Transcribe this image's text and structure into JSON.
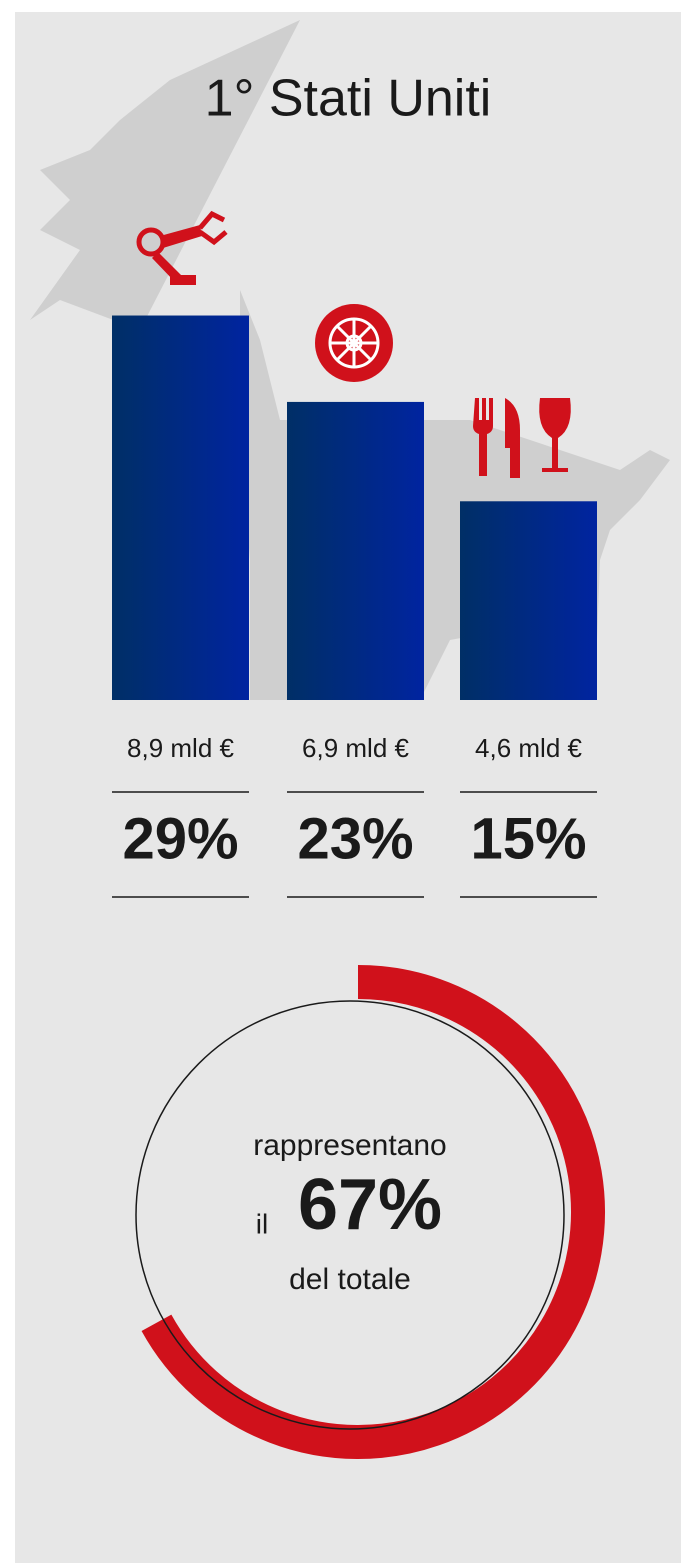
{
  "chart_data": [
    {
      "type": "bar",
      "title": "1° Stati Uniti",
      "values": [
        8.9,
        6.9,
        4.6
      ],
      "value_labels": [
        "8,9 mld €",
        "6,9 mld €",
        "4,6 mld €"
      ],
      "shares": [
        29,
        23,
        15
      ],
      "share_labels": [
        "29%",
        "23%",
        "15%"
      ],
      "color": "#002c8a"
    },
    {
      "type": "donut",
      "value": 67,
      "value_label": "67%",
      "text_top": "rappresentano",
      "text_prefix": "il",
      "text_bottom": "del totale",
      "color": "#d0111b"
    }
  ]
}
